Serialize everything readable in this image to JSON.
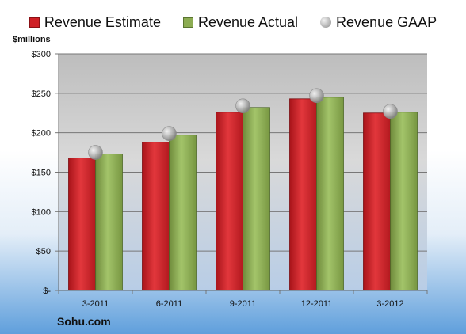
{
  "legend": {
    "estimate": "Revenue Estimate",
    "actual": "Revenue Actual",
    "gaap": "Revenue GAAP"
  },
  "unit_label": "$millions",
  "company": "Sohu.com",
  "colors": {
    "estimate": "#cf1f25",
    "actual": "#8cac52",
    "gaap": "#b3b3b3"
  },
  "chart_data": {
    "type": "bar",
    "categories": [
      "3-2011",
      "6-2011",
      "9-2011",
      "12-2011",
      "3-2012"
    ],
    "series": [
      {
        "name": "Revenue Estimate",
        "values": [
          168,
          188,
          226,
          243,
          225
        ]
      },
      {
        "name": "Revenue Actual",
        "values": [
          173,
          197,
          232,
          245,
          226
        ]
      },
      {
        "name": "Revenue GAAP",
        "values": [
          175,
          199,
          234,
          247,
          227
        ]
      }
    ],
    "ylabel": "$millions",
    "ylim": [
      0,
      300
    ],
    "yticks": [
      0,
      50,
      100,
      150,
      200,
      250,
      300
    ],
    "ytick_labels": [
      "$-",
      "$50",
      "$100",
      "$150",
      "$200",
      "$250",
      "$300"
    ],
    "grid": true,
    "legend_position": "top"
  }
}
